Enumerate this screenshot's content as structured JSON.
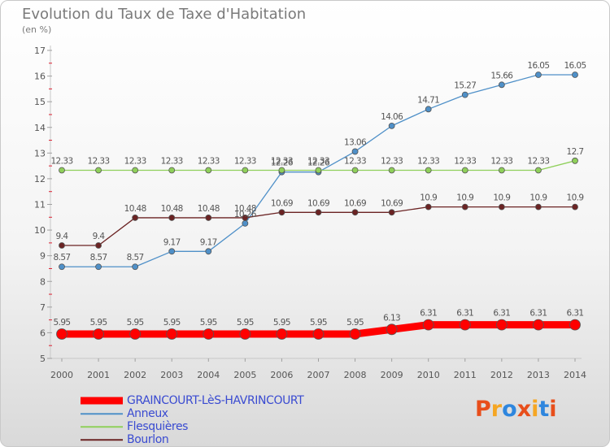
{
  "header": {
    "title": "Evolution du Taux de Taxe d'Habitation",
    "unit": "(en %)"
  },
  "logo": {
    "text": "Proxiti",
    "letter_colors": [
      "#e84e1b",
      "#f5a623",
      "#2e86de",
      "#e84e1b",
      "#f5a623",
      "#2e86de",
      "#e84e1b"
    ]
  },
  "chart_data": {
    "type": "line",
    "x": [
      2000,
      2001,
      2002,
      2003,
      2004,
      2005,
      2006,
      2007,
      2008,
      2009,
      2010,
      2011,
      2012,
      2013,
      2014
    ],
    "ylim": [
      5,
      17
    ],
    "yticks": [
      5,
      6,
      7,
      8,
      9,
      10,
      11,
      12,
      13,
      14,
      15,
      16,
      17
    ],
    "grid": false,
    "legend_position": "bottom-left",
    "series": [
      {
        "name": "GRAINCOURT-LèS-HAVRINCOURT",
        "color": "#ff0000",
        "line_width": 9,
        "values": [
          5.95,
          5.95,
          5.95,
          5.95,
          5.95,
          5.95,
          5.95,
          5.95,
          5.95,
          6.13,
          6.31,
          6.31,
          6.31,
          6.31,
          6.31
        ],
        "labels": [
          "5.95",
          "5.95",
          "5.95",
          "5.95",
          "5.95",
          "5.95",
          "5.95",
          "5.95",
          "5.95",
          "6.13",
          "6.31",
          "6.31",
          "6.31",
          "6.31",
          "6.31"
        ]
      },
      {
        "name": "Anneux",
        "color": "#4f90c8",
        "line_width": 1.3,
        "values": [
          8.57,
          8.57,
          8.57,
          9.17,
          9.17,
          10.26,
          12.26,
          12.26,
          13.06,
          14.06,
          14.71,
          15.27,
          15.66,
          16.05,
          16.05
        ],
        "labels": [
          "8.57",
          "8.57",
          "8.57",
          "9.17",
          "9.17",
          "10.26",
          "12.26",
          "12.26",
          "13.06",
          "14.06",
          "14.71",
          "15.27",
          "15.66",
          "16.05",
          "16.05"
        ]
      },
      {
        "name": "Flesquières",
        "color": "#8fd05a",
        "line_width": 1.3,
        "values": [
          12.33,
          12.33,
          12.33,
          12.33,
          12.33,
          12.33,
          12.33,
          12.33,
          12.33,
          12.33,
          12.33,
          12.33,
          12.33,
          12.33,
          12.7
        ],
        "labels": [
          "12.33",
          "12.33",
          "12.33",
          "12.33",
          "12.33",
          "12.33",
          "12.33",
          "12.33",
          "12.33",
          "12.33",
          "12.33",
          "12.33",
          "12.33",
          "12.33",
          "12.7"
        ]
      },
      {
        "name": "Bourlon",
        "color": "#6b2323",
        "line_width": 1.3,
        "values": [
          9.4,
          9.4,
          10.48,
          10.48,
          10.48,
          10.48,
          10.69,
          10.69,
          10.69,
          10.69,
          10.9,
          10.9,
          10.9,
          10.9,
          10.9
        ],
        "labels": [
          "9.4",
          "9.4",
          "10.48",
          "10.48",
          "10.48",
          "10.48",
          "10.69",
          "10.69",
          "10.69",
          "10.69",
          "10.9",
          "10.9",
          "10.9",
          "10.9",
          "10.9"
        ]
      }
    ]
  }
}
